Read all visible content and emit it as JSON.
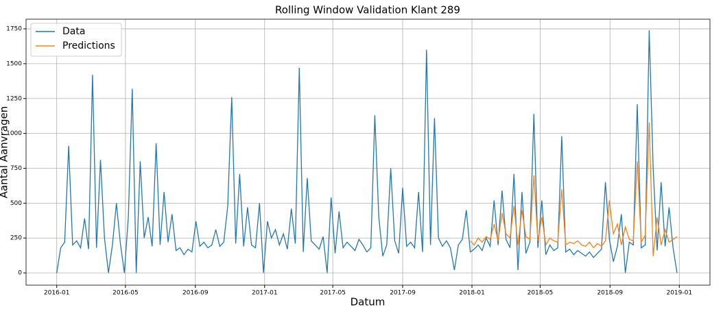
{
  "chart_data": {
    "type": "line",
    "title": "Rolling Window Validation Klant 289",
    "xlabel": "Datum",
    "ylabel": "Aantal Aanvragen",
    "x": [
      0,
      7,
      14,
      21,
      28,
      35,
      42,
      49,
      56,
      63,
      70,
      77,
      84,
      91,
      98,
      105,
      112,
      119,
      126,
      133,
      140,
      147,
      154,
      161,
      168,
      175,
      182,
      189,
      196,
      203,
      210,
      217,
      224,
      231,
      238,
      245,
      252,
      259,
      266,
      273,
      280,
      287,
      294,
      301,
      308,
      315,
      322,
      329,
      336,
      343,
      350,
      357,
      364,
      371,
      378,
      385,
      392,
      399,
      406,
      413,
      420,
      427,
      434,
      441,
      448,
      455,
      462,
      469,
      476,
      483,
      490,
      497,
      504,
      511,
      518,
      525,
      532,
      539,
      546,
      553,
      560,
      567,
      574,
      581,
      588,
      595,
      602,
      609,
      616,
      623,
      630,
      637,
      644,
      651,
      658,
      665,
      672,
      679,
      686,
      693,
      700,
      707,
      714,
      721,
      728,
      735,
      742,
      749,
      756,
      763,
      770,
      777,
      784,
      791,
      798,
      805,
      812,
      819,
      826,
      833,
      840,
      847,
      854,
      861,
      868,
      875,
      882,
      889,
      896,
      903,
      910,
      917,
      924,
      931,
      938,
      945,
      952,
      959,
      966,
      973,
      980,
      987,
      994,
      1001,
      1008,
      1015,
      1022,
      1029,
      1036,
      1043,
      1050,
      1057,
      1064,
      1071,
      1078,
      1085,
      1092
    ],
    "series": [
      {
        "name": "Data",
        "color": "#1f77b4",
        "values": [
          0,
          180,
          220,
          910,
          200,
          230,
          180,
          390,
          170,
          1420,
          180,
          810,
          250,
          0,
          200,
          500,
          210,
          0,
          400,
          1320,
          0,
          800,
          250,
          400,
          190,
          930,
          200,
          580,
          220,
          420,
          160,
          180,
          130,
          170,
          150,
          370,
          190,
          220,
          180,
          200,
          310,
          190,
          220,
          480,
          1260,
          210,
          710,
          190,
          470,
          200,
          180,
          500,
          0,
          370,
          250,
          310,
          200,
          280,
          170,
          460,
          210,
          1470,
          150,
          680,
          230,
          200,
          170,
          260,
          0,
          540,
          140,
          440,
          180,
          220,
          190,
          160,
          240,
          200,
          150,
          180,
          1130,
          400,
          120,
          200,
          750,
          230,
          140,
          610,
          190,
          220,
          180,
          580,
          150,
          1600,
          200,
          1110,
          250,
          190,
          230,
          180,
          20,
          200,
          240,
          450,
          150,
          170,
          200,
          160,
          250,
          190,
          520,
          200,
          590,
          240,
          180,
          710,
          20,
          580,
          140,
          220,
          1140,
          180,
          520,
          130,
          200,
          160,
          180,
          980,
          150,
          170,
          130,
          160,
          140,
          120,
          150,
          110,
          140,
          170,
          650,
          240,
          80,
          190,
          420,
          0,
          220,
          200,
          1210,
          180,
          200,
          1740,
          750,
          160,
          650,
          190,
          470,
          180,
          0
        ]
      },
      {
        "name": "Predictions",
        "color": "#ff7f0e",
        "values": [
          null,
          null,
          null,
          null,
          null,
          null,
          null,
          null,
          null,
          null,
          null,
          null,
          null,
          null,
          null,
          null,
          null,
          null,
          null,
          null,
          null,
          null,
          null,
          null,
          null,
          null,
          null,
          null,
          null,
          null,
          null,
          null,
          null,
          null,
          null,
          null,
          null,
          null,
          null,
          null,
          null,
          null,
          null,
          null,
          null,
          null,
          null,
          null,
          null,
          null,
          null,
          null,
          null,
          null,
          null,
          null,
          null,
          null,
          null,
          null,
          null,
          null,
          null,
          null,
          null,
          null,
          null,
          null,
          null,
          null,
          null,
          null,
          null,
          null,
          null,
          null,
          null,
          null,
          null,
          null,
          null,
          null,
          null,
          null,
          null,
          null,
          null,
          null,
          null,
          null,
          null,
          null,
          null,
          null,
          null,
          null,
          null,
          null,
          null,
          null,
          null,
          null,
          null,
          null,
          230,
          200,
          250,
          220,
          260,
          240,
          350,
          230,
          430,
          280,
          250,
          480,
          200,
          450,
          260,
          240,
          700,
          230,
          400,
          200,
          250,
          230,
          220,
          600,
          200,
          220,
          210,
          230,
          200,
          190,
          220,
          180,
          210,
          190,
          230,
          520,
          280,
          350,
          200,
          330,
          240,
          230,
          800,
          220,
          270,
          1080,
          120,
          400,
          200,
          310,
          220,
          240,
          260
        ]
      }
    ],
    "xlim": [
      -54,
      1150
    ],
    "ylim": [
      -88,
      1819
    ],
    "xticks": [
      {
        "value": 0,
        "label": "2016-01"
      },
      {
        "value": 121,
        "label": "2016-05"
      },
      {
        "value": 244,
        "label": "2016-09"
      },
      {
        "value": 366,
        "label": "2017-01"
      },
      {
        "value": 486,
        "label": "2017-05"
      },
      {
        "value": 609,
        "label": "2017-09"
      },
      {
        "value": 731,
        "label": "2018-01"
      },
      {
        "value": 851,
        "label": "2018-05"
      },
      {
        "value": 974,
        "label": "2018-09"
      },
      {
        "value": 1096,
        "label": "2019-01"
      }
    ],
    "yticks": [
      0,
      250,
      500,
      750,
      1000,
      1250,
      1500,
      1750
    ],
    "grid": true,
    "legend": "upper left"
  }
}
